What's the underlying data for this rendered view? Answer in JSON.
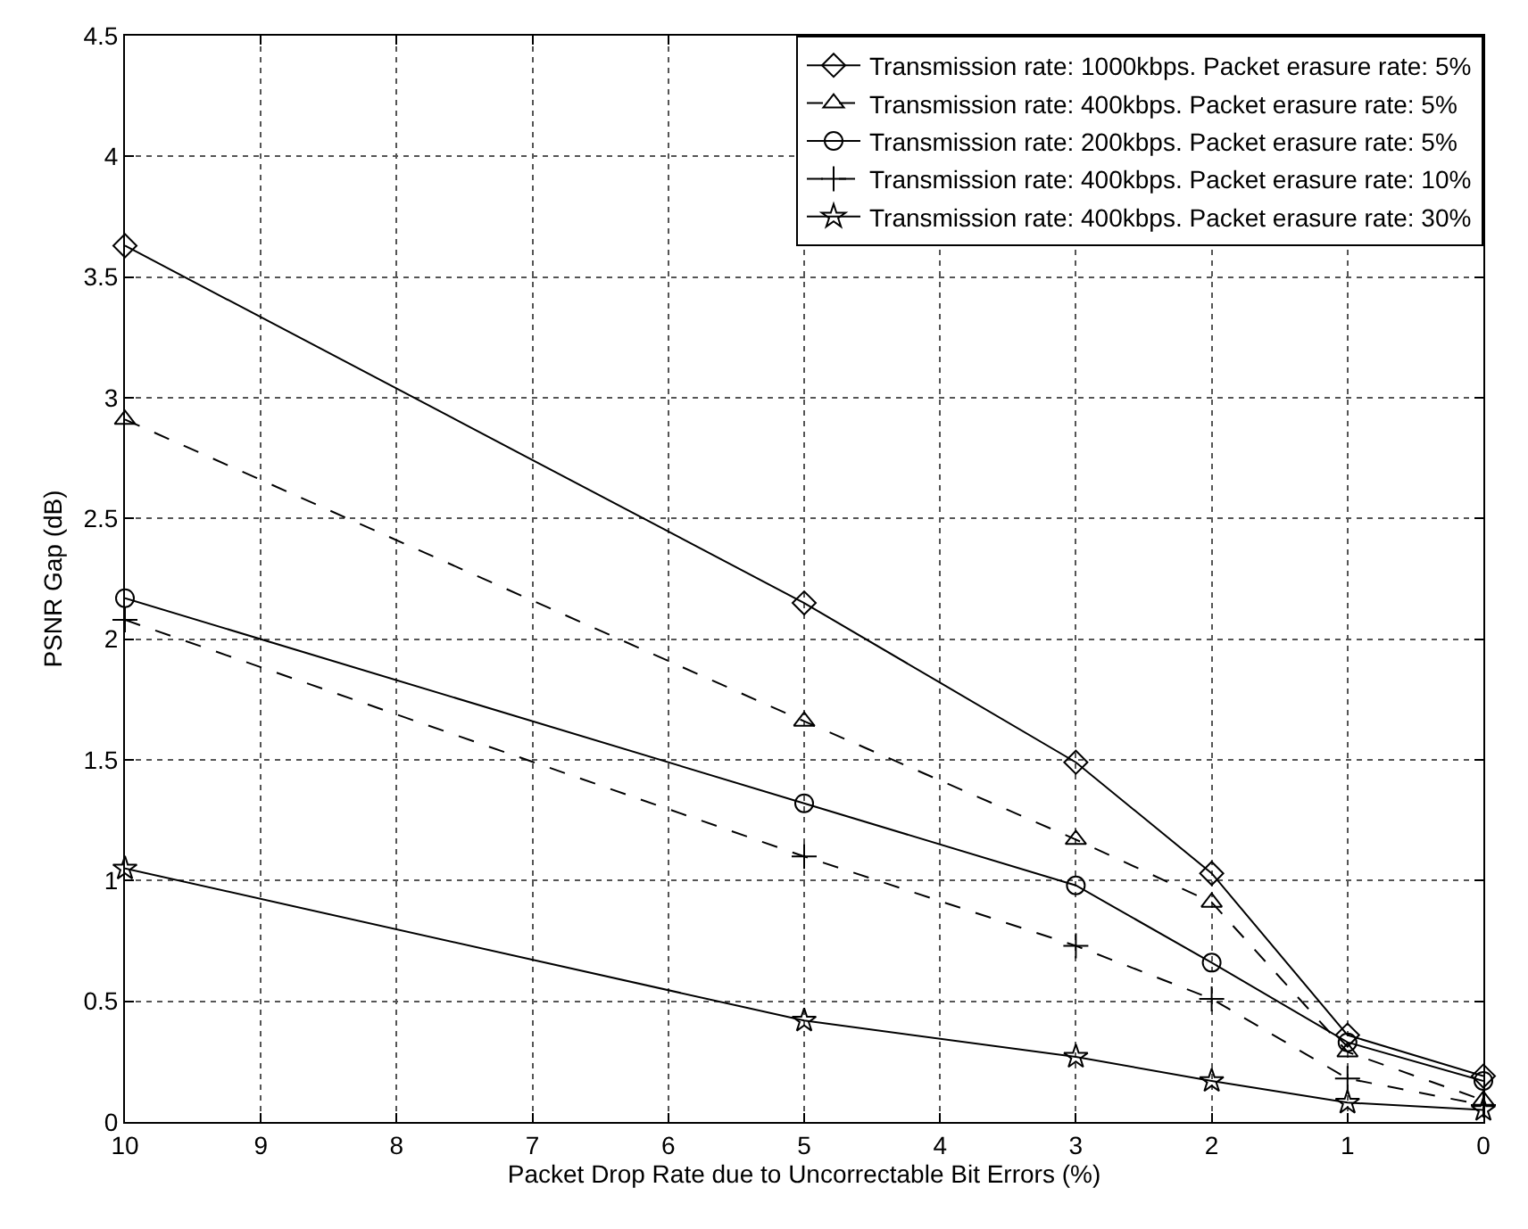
{
  "chart_data": {
    "type": "line",
    "xlabel": "Packet Drop Rate due to Uncorrectable Bit Errors (%)",
    "ylabel": "PSNR Gap (dB)",
    "x": [
      10,
      5,
      3,
      2,
      1,
      0
    ],
    "series": [
      {
        "name": "Transmission rate: 1000kbps. Packet erasure rate: 5%",
        "color": "#000000",
        "marker": "diamond",
        "line_style": "solid",
        "values": [
          3.63,
          2.15,
          1.49,
          1.03,
          0.36,
          0.19
        ]
      },
      {
        "name": "Transmission rate: 400kbps. Packet erasure rate: 5%",
        "color": "#000000",
        "marker": "triangle",
        "line_style": "dashed",
        "values": [
          2.91,
          1.66,
          1.17,
          0.91,
          0.29,
          0.09
        ]
      },
      {
        "name": "Transmission rate: 200kbps. Packet erasure rate: 5%",
        "color": "#000000",
        "marker": "circle",
        "line_style": "solid",
        "values": [
          2.17,
          1.32,
          0.98,
          0.66,
          0.33,
          0.17
        ]
      },
      {
        "name": "Transmission rate: 400kbps. Packet erasure rate: 10%",
        "color": "#000000",
        "marker": "cross",
        "line_style": "dashed",
        "values": [
          2.08,
          1.1,
          0.73,
          0.51,
          0.18,
          0.07
        ]
      },
      {
        "name": "Transmission rate: 400kbps. Packet erasure rate: 30%",
        "color": "#000000",
        "marker": "star",
        "line_style": "solid",
        "values": [
          1.05,
          0.42,
          0.27,
          0.17,
          0.08,
          0.05
        ]
      }
    ],
    "xlim": [
      10,
      0
    ],
    "xticks": [
      10,
      9,
      8,
      7,
      6,
      5,
      4,
      3,
      2,
      1,
      0
    ],
    "ylim": [
      0,
      4.5
    ],
    "yticks": [
      0,
      0.5,
      1,
      1.5,
      2,
      2.5,
      3,
      3.5,
      4,
      4.5
    ],
    "grid": true,
    "legend": "top right"
  }
}
